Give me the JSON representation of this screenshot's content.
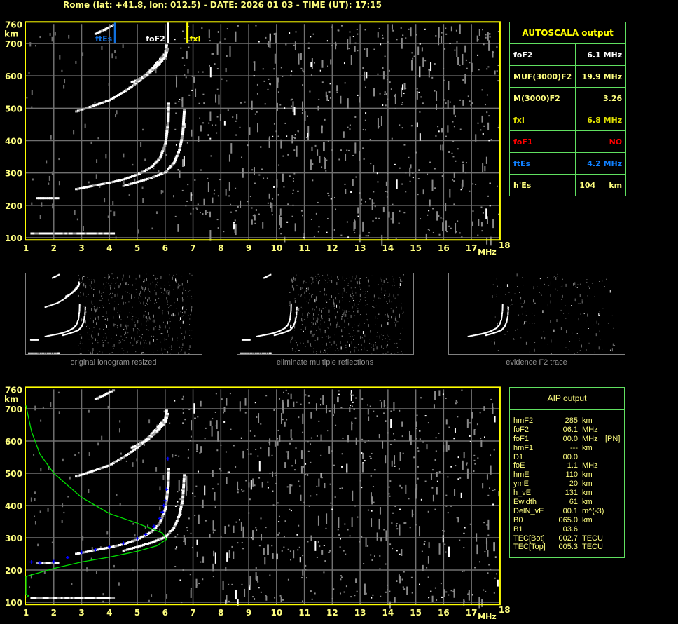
{
  "header": {
    "title": "Rome (lat: +41.8, lon: 012.5) - DATE: 2026 01 03 - TIME (UT): 17:15"
  },
  "colors": {
    "axis": "#ffff00",
    "labels": "#ffff80",
    "grid": "#808080",
    "trace": "#ffffff",
    "ftEs": "#1070e0",
    "fxI": "#ffff00",
    "foF1": "#ff0000",
    "profile": "#00e000",
    "aip_points": "#0000ff",
    "panel_border": "#60e060"
  },
  "chart_data": [
    {
      "type": "scatter",
      "title": "",
      "xlabel": "MHz",
      "ylabel": "km",
      "xlim": [
        1,
        18
      ],
      "ylim": [
        100,
        760
      ],
      "x_ticks": [
        "1",
        "2",
        "3",
        "4",
        "5",
        "6",
        "7",
        "8",
        "9",
        "10",
        "11",
        "12",
        "13",
        "14",
        "15",
        "16",
        "17",
        "18"
      ],
      "y_ticks": [
        "100",
        "200",
        "300",
        "400",
        "500",
        "600",
        "700",
        "760"
      ],
      "grid": true,
      "markers": [
        {
          "label": "ftEs",
          "value": 4.2,
          "color": "#1070e0"
        },
        {
          "label": "foF2",
          "value": 6.1,
          "color": "#ffffff"
        },
        {
          "label": "fxI",
          "value": 6.8,
          "color": "#ffff00"
        }
      ],
      "series": [
        {
          "points": [
            [
              1.2,
              113
            ],
            [
              2,
              113
            ],
            [
              3,
              113
            ],
            [
              4,
              113
            ],
            [
              4.2,
              113
            ]
          ]
        },
        {
          "points": [
            [
              1.4,
              222
            ],
            [
              1.8,
              222
            ],
            [
              2.2,
              222
            ]
          ]
        },
        {
          "points": [
            [
              2.8,
              250
            ],
            [
              3.5,
              262
            ],
            [
              4,
              270
            ],
            [
              4.5,
              280
            ],
            [
              5,
              295
            ],
            [
              5.5,
              318
            ],
            [
              5.8,
              345
            ],
            [
              6.0,
              390
            ],
            [
              6.1,
              460
            ],
            [
              6.12,
              520
            ]
          ]
        },
        {
          "points": [
            [
              4.5,
              260
            ],
            [
              5,
              272
            ],
            [
              5.5,
              285
            ],
            [
              6,
              302
            ],
            [
              6.3,
              330
            ],
            [
              6.5,
              370
            ],
            [
              6.62,
              420
            ],
            [
              6.68,
              500
            ]
          ]
        },
        {
          "points": [
            [
              2.8,
              490
            ],
            [
              3.5,
              510
            ],
            [
              4,
              525
            ],
            [
              4.5,
              550
            ],
            [
              5,
              580
            ],
            [
              5.5,
              620
            ],
            [
              6,
              670
            ],
            [
              6.05,
              700
            ]
          ]
        },
        {
          "points": [
            [
              4.8,
              580
            ],
            [
              5.3,
              600
            ],
            [
              5.7,
              630
            ],
            [
              6,
              660
            ],
            [
              6.1,
              690
            ]
          ]
        },
        {
          "points": [
            [
              3.5,
              730
            ],
            [
              3.8,
              742
            ],
            [
              4.2,
              760
            ]
          ]
        }
      ]
    },
    {
      "type": "scatter",
      "title": "",
      "xlabel": "MHz",
      "ylabel": "km",
      "xlim": [
        1,
        18
      ],
      "ylim": [
        100,
        760
      ],
      "x_ticks": [
        "1",
        "2",
        "3",
        "4",
        "5",
        "6",
        "7",
        "8",
        "9",
        "10",
        "11",
        "12",
        "13",
        "14",
        "15",
        "16",
        "17",
        "18"
      ],
      "y_ticks": [
        "100",
        "200",
        "300",
        "400",
        "500",
        "600",
        "700",
        "760"
      ],
      "grid": true,
      "profile": {
        "points": [
          [
            1.0,
            115
          ],
          [
            1.1,
            120
          ],
          [
            1.0,
            125
          ],
          [
            1.0,
            180
          ],
          [
            2,
            205
          ],
          [
            3,
            225
          ],
          [
            4,
            240
          ],
          [
            5,
            258
          ],
          [
            5.7,
            275
          ],
          [
            6.05,
            295
          ],
          [
            5.9,
            315
          ],
          [
            5,
            345
          ],
          [
            4,
            375
          ],
          [
            3,
            425
          ],
          [
            2,
            500
          ],
          [
            1.5,
            560
          ],
          [
            1.2,
            630
          ],
          [
            1,
            710
          ]
        ]
      },
      "aip_points": {
        "points": [
          [
            1.2,
            225
          ],
          [
            1.5,
            222
          ],
          [
            2,
            226
          ],
          [
            2.5,
            238
          ],
          [
            3,
            255
          ],
          [
            3.5,
            263
          ],
          [
            4,
            272
          ],
          [
            4.5,
            283
          ],
          [
            5,
            298
          ],
          [
            5.3,
            310
          ],
          [
            5.6,
            335
          ],
          [
            5.8,
            360
          ],
          [
            5.9,
            380
          ],
          [
            5.95,
            400
          ],
          [
            6.0,
            415
          ],
          [
            6.05,
            450
          ],
          [
            6.1,
            545
          ]
        ]
      }
    }
  ],
  "thumbnails": [
    {
      "label": "original ionogram resized"
    },
    {
      "label": "eliminate multiple reflections"
    },
    {
      "label": "evidence F2 trace"
    }
  ],
  "autoscala": {
    "title": "AUTOSCALA output",
    "rows": [
      {
        "name": "foF2",
        "value": "6.1 MHz",
        "color": "#ffffff"
      },
      {
        "name": "MUF(3000)F2",
        "value": "19.9 MHz",
        "color": "#ffff80"
      },
      {
        "name": "M(3000)F2",
        "value": "3.26",
        "color": "#ffff80"
      },
      {
        "name": "fxI",
        "value": "6.8 MHz",
        "color": "#e0e000"
      },
      {
        "name": "foF1",
        "value": "NO",
        "color": "#ff0000"
      },
      {
        "name": "ftEs",
        "value": "4.2 MHz",
        "color": "#1080ff"
      },
      {
        "name": "h'Es",
        "value": "104     km",
        "color": "#ffff80"
      }
    ]
  },
  "aip": {
    "title": "AIP output",
    "rows": [
      {
        "name": "hmF2",
        "value": "285",
        "unit": "km",
        "extra": ""
      },
      {
        "name": "foF2",
        "value": "06.1",
        "unit": "MHz",
        "extra": ""
      },
      {
        "name": "foF1",
        "value": "00.0",
        "unit": "MHz",
        "extra": "[PN]"
      },
      {
        "name": "hmF1",
        "value": "---",
        "unit": "km",
        "extra": ""
      },
      {
        "name": "D1",
        "value": "00.0",
        "unit": "",
        "extra": ""
      },
      {
        "name": "foE",
        "value": "1.1",
        "unit": "MHz",
        "extra": ""
      },
      {
        "name": "hmE",
        "value": "110",
        "unit": "km",
        "extra": ""
      },
      {
        "name": "ymE",
        "value": "20",
        "unit": "km",
        "extra": ""
      },
      {
        "name": "h_vE",
        "value": "131",
        "unit": "km",
        "extra": ""
      },
      {
        "name": "Ewidth",
        "value": "61",
        "unit": "km",
        "extra": ""
      },
      {
        "name": "DelN_vE",
        "value": "00.1",
        "unit": "m^(-3)",
        "extra": ""
      },
      {
        "name": "B0",
        "value": "065.0",
        "unit": "km",
        "extra": ""
      },
      {
        "name": "B1",
        "value": "03.6",
        "unit": "",
        "extra": ""
      },
      {
        "name": "TEC[Bot]",
        "value": "002.7",
        "unit": "TECU",
        "extra": ""
      },
      {
        "name": "TEC[Top]",
        "value": "005.3",
        "unit": "TECU",
        "extra": ""
      }
    ]
  }
}
